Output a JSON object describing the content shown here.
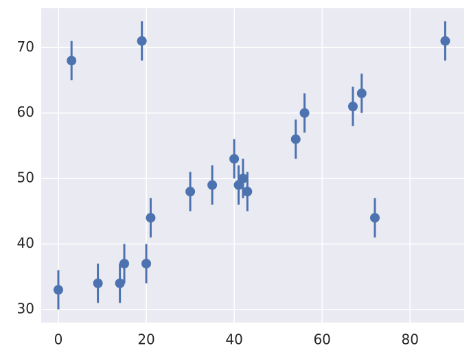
{
  "chart_data": {
    "type": "errorbar-scatter",
    "x": [
      0,
      3,
      9,
      14,
      15,
      19,
      20,
      21,
      30,
      35,
      40,
      41,
      42,
      43,
      54,
      56,
      67,
      69,
      72,
      88
    ],
    "series": [
      {
        "color": "#4c72b0",
        "values": [
          33,
          68,
          34,
          34,
          37,
          71,
          37,
          44,
          48,
          49,
          53,
          49,
          50,
          48,
          56,
          60,
          61,
          63,
          44,
          71
        ],
        "errors": [
          3,
          3,
          3,
          3,
          3,
          3,
          3,
          3,
          3,
          3,
          3,
          3,
          3,
          3,
          3,
          3,
          3,
          3,
          3,
          3
        ]
      }
    ],
    "xlim": [
      -3.9,
      92.3
    ],
    "xticks": [
      0,
      20,
      40,
      60,
      80
    ],
    "ylim": [
      28,
      76
    ],
    "yticks": [
      30,
      40,
      50,
      60,
      70
    ],
    "grid": true,
    "background": "#eaeaf2"
  }
}
